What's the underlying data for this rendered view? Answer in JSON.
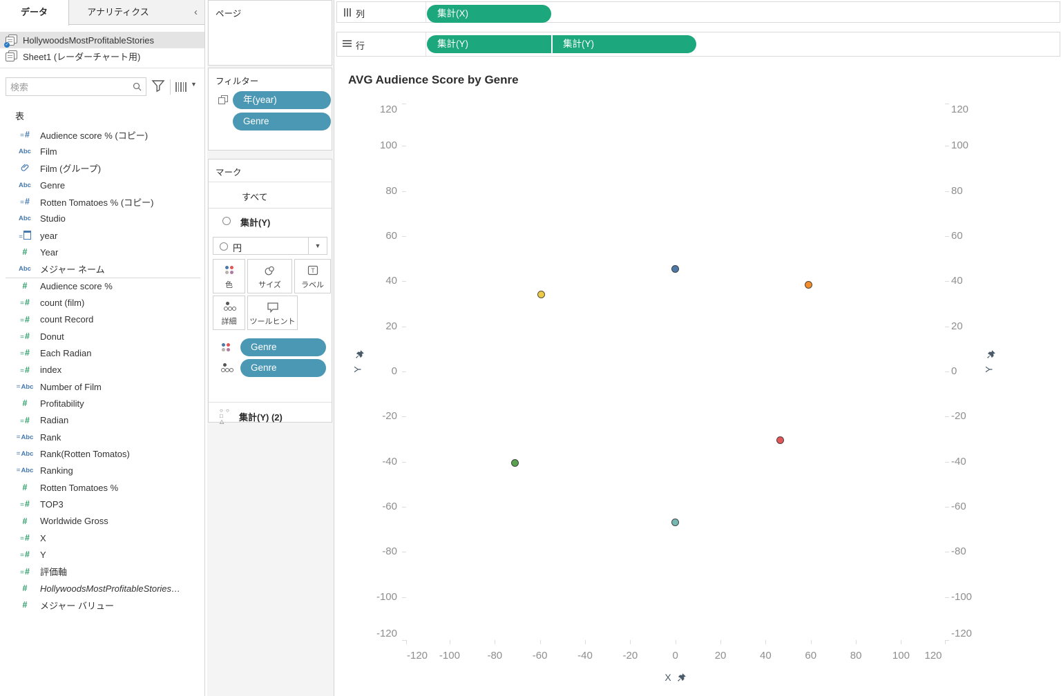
{
  "sidebar": {
    "tabs": {
      "data": "データ",
      "analytics": "アナリティクス",
      "collapse": "‹"
    },
    "datasources": [
      {
        "name": "HollywoodsMostProfitableStories",
        "selected": true
      },
      {
        "name": "Sheet1 (レーダーチャート用)",
        "selected": false
      }
    ],
    "search_placeholder": "検索",
    "section_title": "表",
    "fields": [
      {
        "name": "Audience  score % (コピー)",
        "icon": "calc-hash",
        "color": "blue"
      },
      {
        "name": "Film",
        "icon": "abc",
        "color": "blue"
      },
      {
        "name": "Film (グループ)",
        "icon": "clip",
        "color": "blue"
      },
      {
        "name": "Genre",
        "icon": "abc",
        "color": "blue"
      },
      {
        "name": "Rotten Tomatoes % (コピー)",
        "icon": "calc-hash",
        "color": "blue"
      },
      {
        "name": "Studio",
        "icon": "abc",
        "color": "blue"
      },
      {
        "name": "year",
        "icon": "calc-date",
        "color": "blue"
      },
      {
        "name": "Year",
        "icon": "hash",
        "color": "green"
      },
      {
        "name": "メジャー ネーム",
        "icon": "abc",
        "color": "blue",
        "sep_after": true
      },
      {
        "name": "Audience  score %",
        "icon": "hash",
        "color": "green"
      },
      {
        "name": "count (film)",
        "icon": "calc-hash",
        "color": "green"
      },
      {
        "name": "count Record",
        "icon": "calc-hash",
        "color": "green"
      },
      {
        "name": "Donut",
        "icon": "calc-hash",
        "color": "green"
      },
      {
        "name": "Each Radian",
        "icon": "calc-hash",
        "color": "green"
      },
      {
        "name": "index",
        "icon": "calc-hash",
        "color": "green"
      },
      {
        "name": "Number of Film",
        "icon": "calc-abc",
        "color": "blue"
      },
      {
        "name": "Profitability",
        "icon": "hash",
        "color": "green"
      },
      {
        "name": "Radian",
        "icon": "calc-hash",
        "color": "green"
      },
      {
        "name": "Rank",
        "icon": "calc-abc",
        "color": "blue"
      },
      {
        "name": "Rank(Rotten Tomatos)",
        "icon": "calc-abc",
        "color": "blue"
      },
      {
        "name": "Ranking",
        "icon": "calc-abc",
        "color": "blue"
      },
      {
        "name": "Rotten Tomatoes %",
        "icon": "hash",
        "color": "green"
      },
      {
        "name": "TOP3",
        "icon": "calc-hash",
        "color": "green"
      },
      {
        "name": "Worldwide Gross",
        "icon": "hash",
        "color": "green"
      },
      {
        "name": "X",
        "icon": "calc-hash",
        "color": "green"
      },
      {
        "name": "Y",
        "icon": "calc-hash",
        "color": "green"
      },
      {
        "name": "評価軸",
        "icon": "calc-hash",
        "color": "green"
      },
      {
        "name": "HollywoodsMostProfitableStories…",
        "icon": "hash",
        "color": "green",
        "italic": true
      },
      {
        "name": "メジャー バリュー",
        "icon": "hash",
        "color": "green"
      }
    ]
  },
  "panel": {
    "pages_title": "ページ",
    "filters_title": "フィルター",
    "filter_pills": [
      {
        "label": "年(year)",
        "context_icon": true
      },
      {
        "label": "Genre",
        "context_icon": false
      }
    ],
    "marks_title": "マーク",
    "marks": {
      "all_label": "すべて",
      "card1_label": "集計(Y)",
      "mark_type_label": "円",
      "buttons": {
        "color": "色",
        "size": "サイズ",
        "label": "ラベル",
        "detail": "詳細",
        "tooltip": "ツールヒント"
      },
      "encoding_pills": [
        {
          "icon": "color",
          "label": "Genre"
        },
        {
          "icon": "detail",
          "label": "Genre"
        }
      ],
      "card2_label": "集計(Y) (2)"
    }
  },
  "shelves": {
    "columns_label": "列",
    "rows_label": "行",
    "columns_pills": [
      "集計(X)"
    ],
    "rows_pills": [
      "集計(Y)",
      "集計(Y)"
    ]
  },
  "chart_data": {
    "type": "scatter",
    "title": "AVG Audience Score by Genre",
    "xlabel": "X",
    "ylabel": "Y",
    "xlim": [
      -119.4,
      119.4
    ],
    "ylim": [
      -118.8,
      118.8
    ],
    "grid": false,
    "x_ticks": [
      -120,
      -100,
      -80,
      -60,
      -40,
      -20,
      0,
      20,
      40,
      60,
      80,
      100,
      120
    ],
    "y_ticks": [
      120,
      100,
      80,
      60,
      40,
      20,
      0,
      -20,
      -40,
      -60,
      -80,
      -100,
      -120
    ],
    "points": [
      {
        "x": 0,
        "y": 45.5,
        "color": "#4E79A7"
      },
      {
        "x": -59.5,
        "y": 34,
        "color": "#EDC948"
      },
      {
        "x": 59,
        "y": 38.5,
        "color": "#F28E2B"
      },
      {
        "x": 46.5,
        "y": -30.5,
        "color": "#E15759"
      },
      {
        "x": -71,
        "y": -40.5,
        "color": "#59A14F"
      },
      {
        "x": 0,
        "y": -67,
        "color": "#76B7B2"
      }
    ]
  },
  "colors": {
    "measure_pill": "#1CA87C",
    "dimension_pill": "#4A98B4",
    "axis_text": "#8E8E8E",
    "title_text": "#2E2E2E"
  }
}
